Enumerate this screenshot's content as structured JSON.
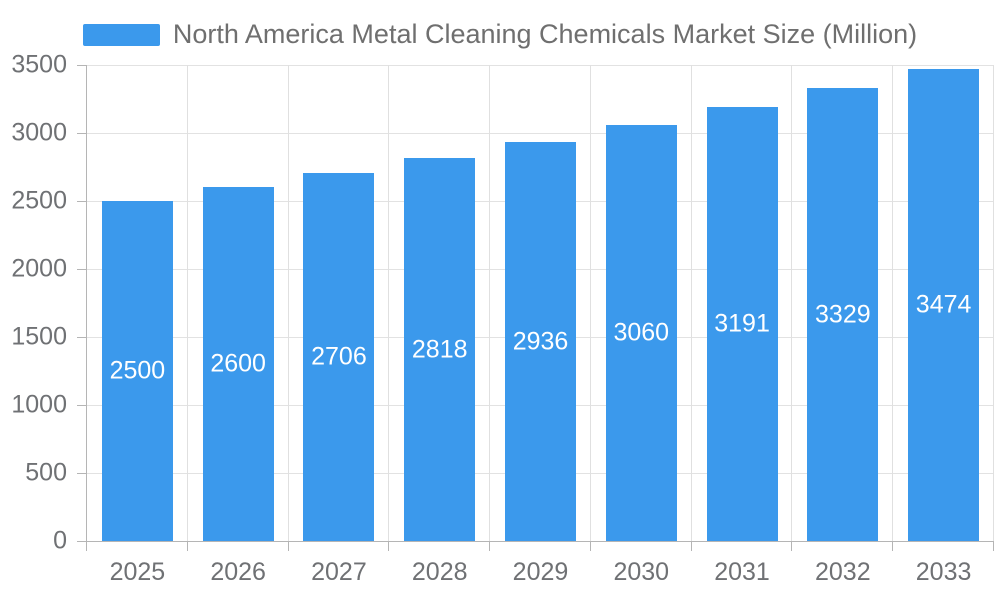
{
  "legend": {
    "label": "North America Metal Cleaning Chemicals Market Size (Million)",
    "swatch_color": "#3B99EC"
  },
  "chart_data": {
    "type": "bar",
    "title": "North America Metal Cleaning Chemicals Market Size (Million)",
    "categories": [
      "2025",
      "2026",
      "2027",
      "2028",
      "2029",
      "2030",
      "2031",
      "2032",
      "2033"
    ],
    "values": [
      2500,
      2600,
      2706,
      2818,
      2936,
      3060,
      3191,
      3329,
      3474
    ],
    "xlabel": "",
    "ylabel": "",
    "ylim": [
      0,
      3500
    ],
    "yticks": [
      0,
      500,
      1000,
      1500,
      2000,
      2500,
      3000,
      3500
    ],
    "grid": true,
    "legend_position": "top-center",
    "bar_color": "#3B99EC",
    "bar_label_color": "#FFFFFF",
    "axis_text_color": "#6F7174",
    "axis_line_color": "#B5B5B5",
    "grid_color": "#E2E2E2",
    "background_color": "#FFFFFF"
  }
}
